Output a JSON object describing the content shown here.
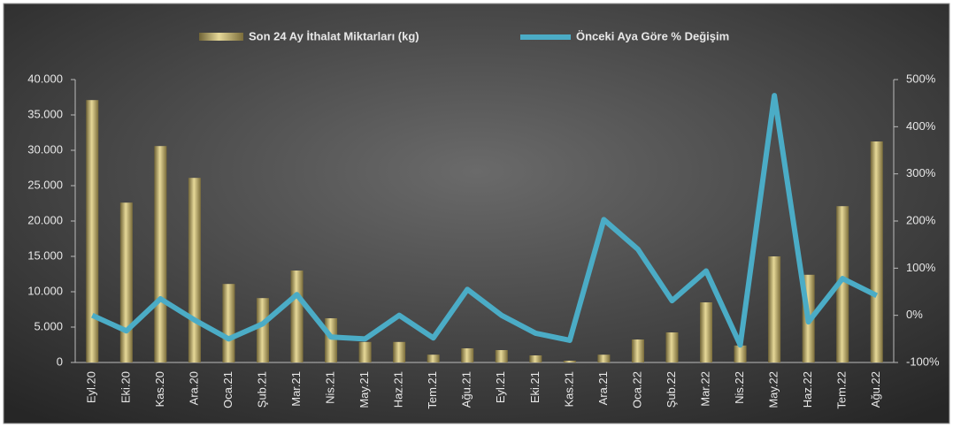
{
  "chart_data": {
    "type": "bar_line",
    "categories": [
      "Eyl.20",
      "Eki.20",
      "Kas.20",
      "Ara.20",
      "Oca.21",
      "Şub.21",
      "Mar.21",
      "Nis.21",
      "May.21",
      "Haz.21",
      "Tem.21",
      "Ağu.21",
      "Eyl.21",
      "Eki.21",
      "Kas.21",
      "Ara.21",
      "Oca.22",
      "Şub.22",
      "Mar.22",
      "Nis.22",
      "May.22",
      "Haz.22",
      "Tem.22",
      "Ağu.22"
    ],
    "series": [
      {
        "name": "Son 24 Ay İthalat Miktarları (kg)",
        "type": "bar",
        "color": "#bfae6a",
        "values": [
          37100,
          22600,
          30600,
          26100,
          11100,
          9100,
          13000,
          6250,
          2900,
          2900,
          1100,
          2000,
          1750,
          1000,
          250,
          1100,
          3250,
          4250,
          8500,
          2400,
          15000,
          12400,
          22100,
          31250
        ]
      },
      {
        "name": "Önceki Aya Göre % Değişim",
        "type": "line",
        "axis": "y2",
        "color": "#4bacc6",
        "values": [
          0,
          -33,
          35,
          -10,
          -50,
          -18,
          44,
          -46,
          -50,
          0,
          -48,
          55,
          0,
          -38,
          -53,
          203,
          140,
          31,
          94,
          -63,
          466,
          -14,
          78,
          42
        ]
      }
    ],
    "ylim": [
      0,
      40000
    ],
    "yticks": [
      0,
      {
        "value": 5000,
        "label": "5.000"
      },
      {
        "value": 10000,
        "label": "10.000"
      },
      {
        "value": 15000,
        "label": "15.000"
      },
      {
        "value": 20000,
        "label": "20.000"
      },
      {
        "value": 25000,
        "label": "25.000"
      },
      {
        "value": 30000,
        "label": "30.000"
      },
      {
        "value": 35000,
        "label": "35.000"
      },
      {
        "value": 40000,
        "label": "40.000"
      }
    ],
    "y2lim": [
      -100,
      500
    ],
    "y2ticks": [
      {
        "value": -100,
        "label": "-100%"
      },
      {
        "value": 0,
        "label": "0%"
      },
      {
        "value": 100,
        "label": "100%"
      },
      {
        "value": 200,
        "label": "200%"
      },
      {
        "value": 300,
        "label": "300%"
      },
      {
        "value": 400,
        "label": "400%"
      },
      {
        "value": 500,
        "label": "500%"
      }
    ],
    "legend": "top"
  }
}
